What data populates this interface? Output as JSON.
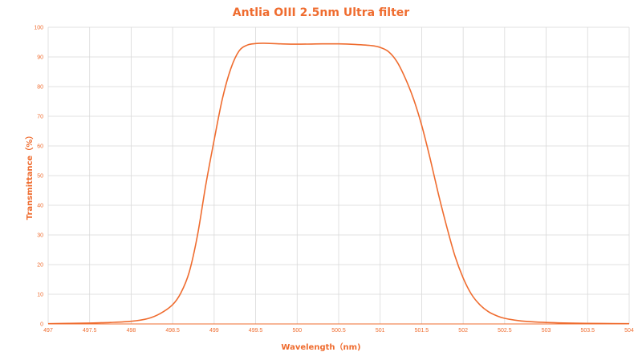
{
  "chart_data": {
    "type": "line",
    "title": "Antlia OIII 2.5nm Ultra filter",
    "xlabel": "Wavelength（nm)",
    "ylabel": "Transmittance（%）",
    "xlim": [
      497,
      504
    ],
    "ylim": [
      0,
      100
    ],
    "x_ticks": [
      "497",
      "497.5",
      "498",
      "498.5",
      "499",
      "499.5",
      "500",
      "500.5",
      "501",
      "501.5",
      "502",
      "502.5",
      "503",
      "503.5",
      "504"
    ],
    "y_ticks": [
      "0",
      "10",
      "20",
      "30",
      "40",
      "50",
      "60",
      "70",
      "80",
      "90",
      "100"
    ],
    "grid": true,
    "legend": "none",
    "colors": {
      "line": "#ef6c2f",
      "text": "#ef6c2f",
      "grid": "#d9d9d9",
      "axis": "#ef6c2f"
    },
    "series": [
      {
        "x": [
          497.0,
          497.25,
          497.5,
          497.75,
          498.0,
          498.2,
          498.35,
          498.5,
          498.6,
          498.7,
          498.8,
          498.9,
          499.0,
          499.1,
          499.2,
          499.3,
          499.4,
          499.5,
          499.6,
          499.8,
          500.0,
          500.3,
          500.5,
          500.7,
          500.9,
          501.0,
          501.1,
          501.2,
          501.3,
          501.4,
          501.5,
          501.6,
          501.7,
          501.8,
          501.9,
          502.0,
          502.1,
          502.2,
          502.3,
          502.4,
          502.5,
          502.7,
          503.0,
          503.5,
          504.0
        ],
        "y": [
          0.1,
          0.2,
          0.3,
          0.5,
          0.9,
          1.8,
          3.5,
          6.5,
          10.5,
          17.5,
          30,
          47,
          62,
          76,
          86,
          92,
          94,
          94.5,
          94.6,
          94.4,
          94.3,
          94.4,
          94.4,
          94.2,
          93.8,
          93.2,
          91.8,
          88.5,
          83,
          76,
          67,
          56,
          44,
          33,
          23,
          15.5,
          10,
          6.5,
          4.2,
          2.8,
          1.9,
          1.0,
          0.5,
          0.2,
          0.1
        ]
      }
    ]
  }
}
